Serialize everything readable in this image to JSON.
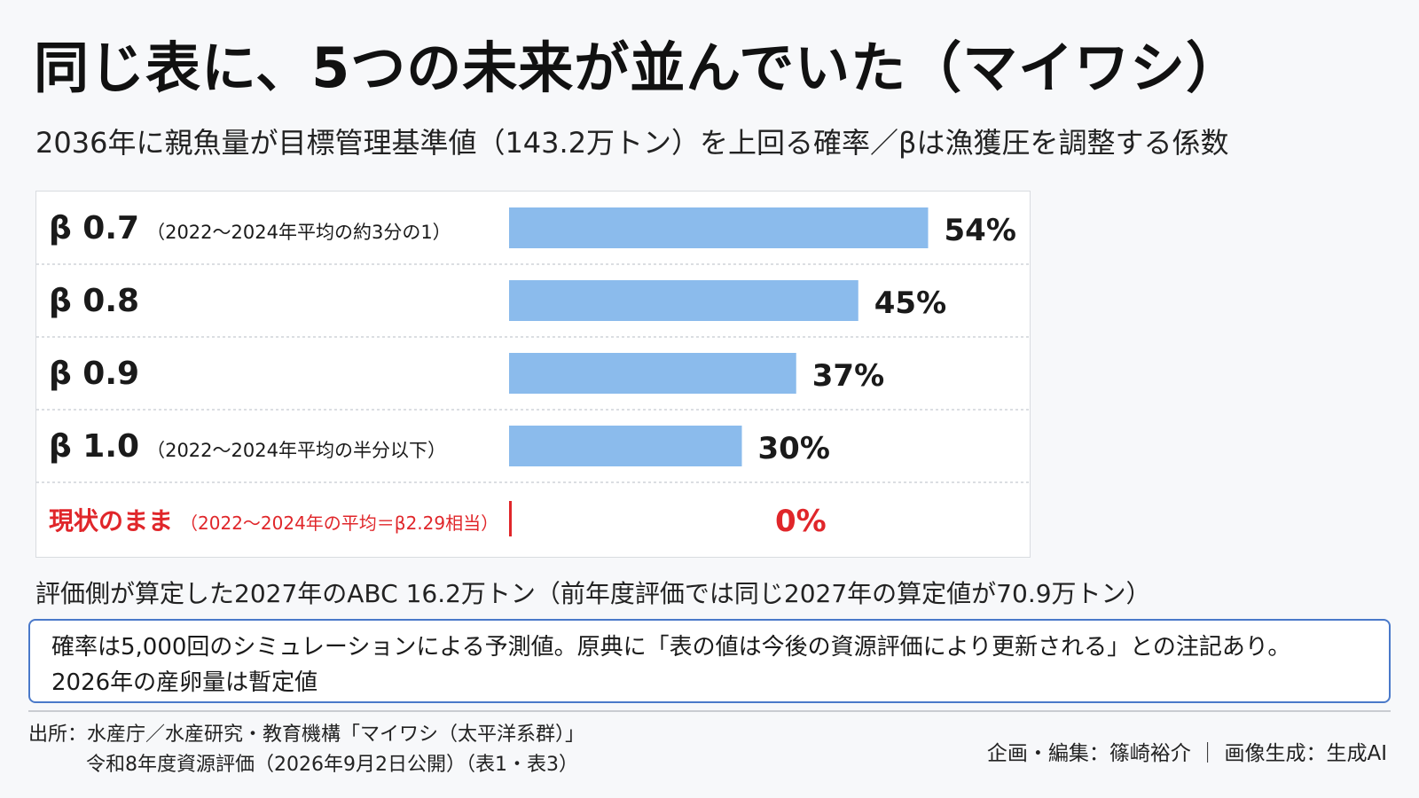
{
  "title": "同じ表に、5つの未来が並んでいた（マイワシ）",
  "subtitle": "2036年に親魚量が目標管理基準値（143.2万トン）を上回る確率／βは漁獲圧を調整する係数",
  "chart_data": {
    "type": "bar",
    "orientation": "horizontal",
    "categories": [
      {
        "main": "β 0.7",
        "sub": "（2022～2024年平均の約3分の1）"
      },
      {
        "main": "β 0.8",
        "sub": ""
      },
      {
        "main": "β 0.9",
        "sub": ""
      },
      {
        "main": "β 1.0",
        "sub": "（2022～2024年平均の半分以下）"
      },
      {
        "main": "現状のまま",
        "sub": "（2022～2024年の平均＝β2.29相当）"
      }
    ],
    "values": [
      54,
      45,
      37,
      30,
      0
    ],
    "value_labels": [
      "54%",
      "45%",
      "37%",
      "30%",
      "0%"
    ],
    "highlight_index": 4,
    "unit": "%",
    "xlim": [
      0,
      100
    ],
    "colors": {
      "bar": "#8bbbec",
      "highlight": "#e0262a",
      "text": "#1a1a1a"
    }
  },
  "abc_note": "評価側が算定した2027年のABC 16.2万トン（前年度評価では同じ2027年の算定値が70.9万トン）",
  "note": {
    "line1": "確率は5,000回のシミュレーションによる予測値。原典に「表の値は今後の資源評価により更新される」との注記あり。",
    "line2": "2026年の産卵量は暫定値"
  },
  "source": {
    "line1": "出所：水産庁／水産研究・教育機構「マイワシ（太平洋系群）」",
    "line2": "令和8年度資源評価（2026年9月2日公開）（表1・表3）"
  },
  "credit": "企画・編集：篠崎裕介 ｜ 画像生成：生成AI"
}
